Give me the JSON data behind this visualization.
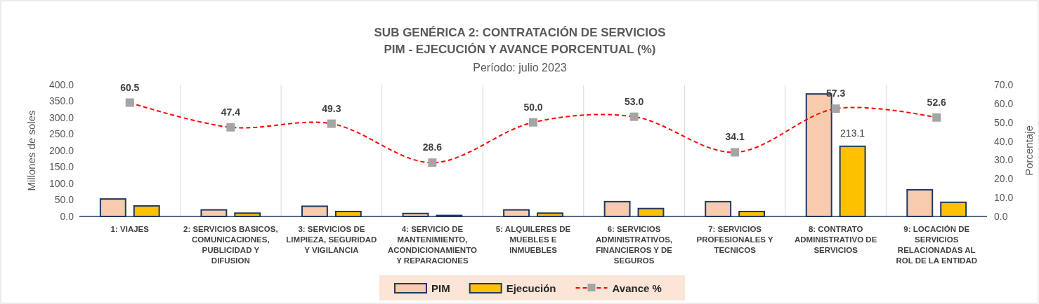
{
  "chart_data": {
    "type": "bar",
    "title": "SUB GENÉRICA 2: CONTRATACIÓN DE SERVICIOS",
    "subtitle": "PIM - EJECUCIÓN Y AVANCE PORCENTUAL (%)",
    "annotations": [
      "Período: julio  2023"
    ],
    "ylabel": "Millones de soles",
    "y2label": "Porcentaje",
    "categories": [
      "1: VIAJES",
      "2: SERVICIOS BASICOS, COMUNICACIONES, PUBLICIDAD Y DIFUSION",
      "3: SERVICIOS DE LIMPIEZA, SEGURIDAD Y VIGILANCIA",
      "4: SERVICIO DE MANTENIMIENTO, ACONDICIONAMIENTO Y REPARACIONES",
      "5: ALQUILERES DE MUEBLES E INMUEBLES",
      "6: SERVICIOS ADMINISTRATIVOS, FINANCIEROS Y DE SEGUROS",
      "7: SERVICIOS PROFESIONALES Y TECNICOS",
      "8: CONTRATO ADMINISTRATIVO DE SERVICIOS",
      "9: LOCACIÓN DE SERVICIOS RELACIONADAS AL ROL DE LA ENTIDAD"
    ],
    "series": [
      {
        "name": "PIM",
        "color": "#f8cbad",
        "values": [
          53,
          20,
          31,
          9,
          20,
          45,
          45,
          372,
          81
        ]
      },
      {
        "name": "Ejecución",
        "color": "#ffc000",
        "values": [
          32,
          10,
          15,
          3,
          10,
          24,
          15,
          213.1,
          43
        ],
        "value_labels": [
          null,
          null,
          null,
          null,
          null,
          null,
          null,
          "213.1",
          null
        ]
      },
      {
        "name": "Avance %",
        "type": "line",
        "axis": "y2",
        "color": "#ff0000",
        "marker": "square",
        "line_style": "dashed",
        "values": [
          60.5,
          47.4,
          49.3,
          28.6,
          50.0,
          53.0,
          34.1,
          57.3,
          52.6
        ],
        "value_labels": [
          "60.5",
          "47.4",
          "49.3",
          "28.6",
          "50.0",
          "53.0",
          "34.1",
          "57.3",
          "52.6"
        ]
      }
    ],
    "ylim": [
      0,
      400
    ],
    "yticks": [
      {
        "value": 0,
        "label": "0.0"
      },
      {
        "value": 50,
        "label": "50.0"
      },
      {
        "value": 100,
        "label": "100.0"
      },
      {
        "value": 150,
        "label": "150.0"
      },
      {
        "value": 200,
        "label": "200.0"
      },
      {
        "value": 250,
        "label": "250.0"
      },
      {
        "value": 300,
        "label": "300.0"
      },
      {
        "value": 350,
        "label": "350.0"
      },
      {
        "value": 400,
        "label": "400.0"
      }
    ],
    "y2lim": [
      0,
      70
    ],
    "y2ticks": [
      {
        "value": 0,
        "label": "0.0"
      },
      {
        "value": 10,
        "label": "10.0"
      },
      {
        "value": 20,
        "label": "20.0"
      },
      {
        "value": 30,
        "label": "30.0"
      },
      {
        "value": 40,
        "label": "40.0"
      },
      {
        "value": 50,
        "label": "50.0"
      },
      {
        "value": 60,
        "label": "60.0"
      },
      {
        "value": 70,
        "label": "70.0"
      }
    ],
    "grid": "x",
    "legend": "bottom"
  }
}
